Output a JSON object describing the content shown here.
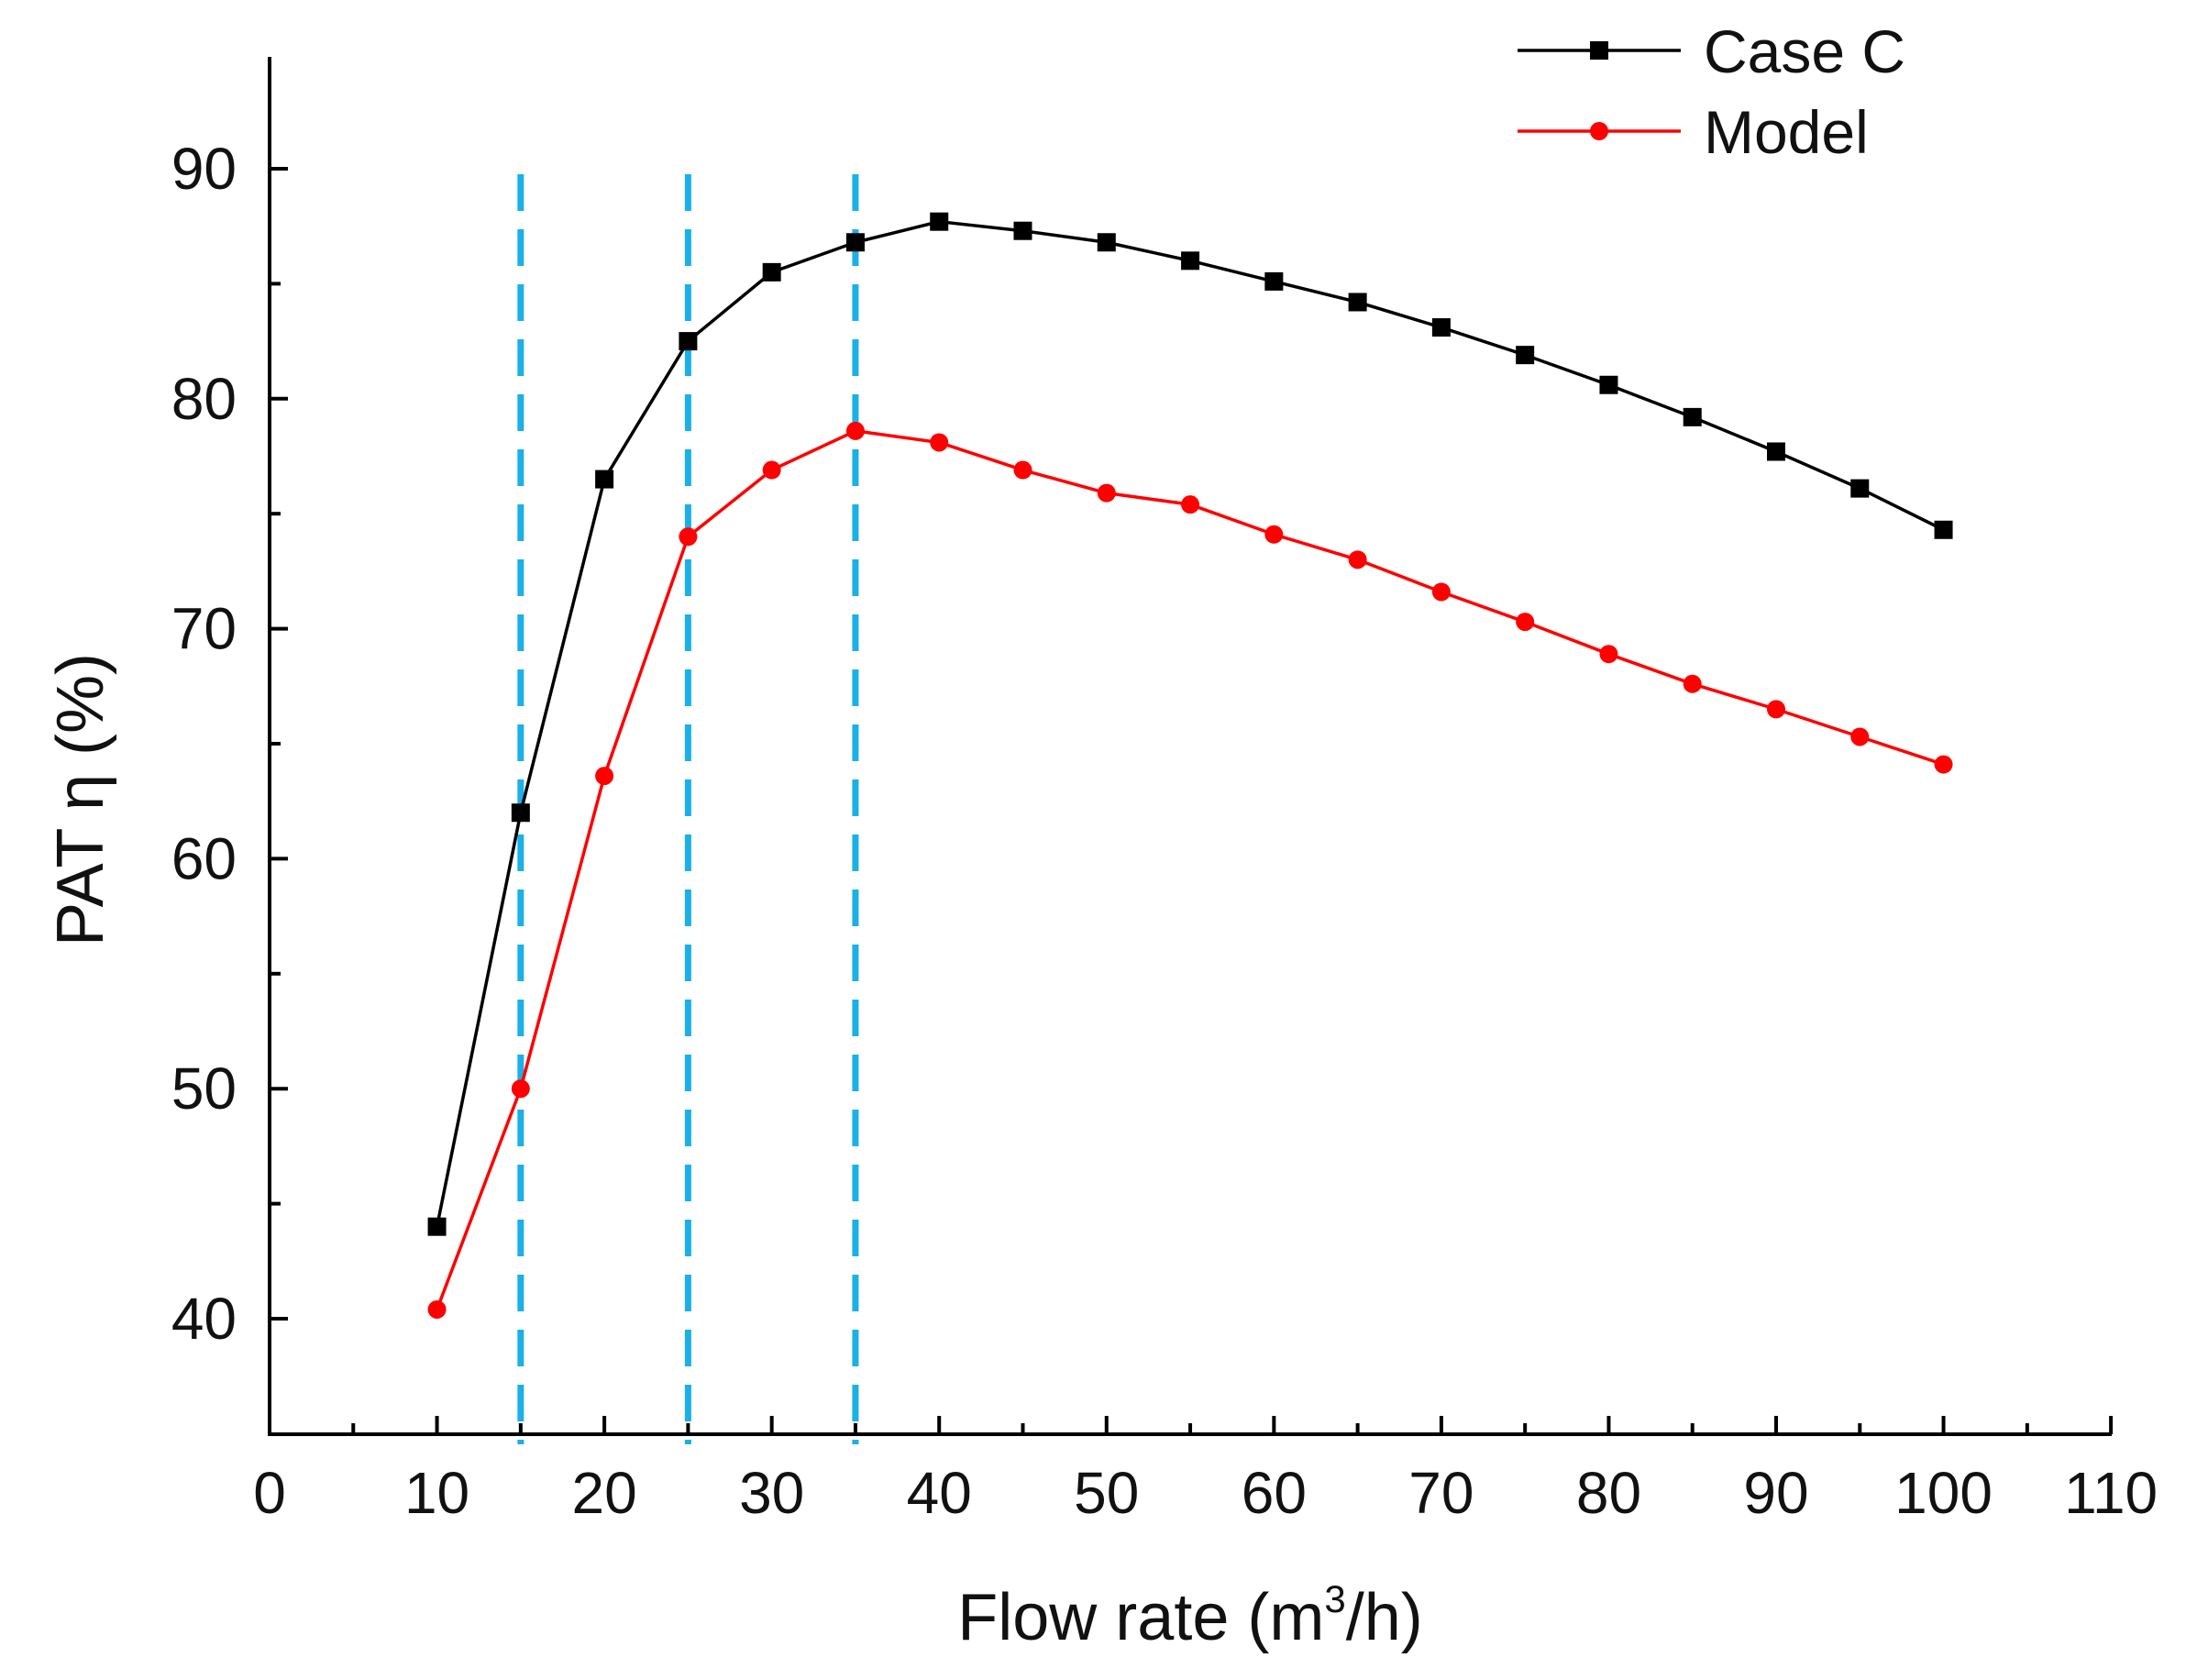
{
  "chart_data": {
    "type": "line",
    "title": "",
    "xlabel": {
      "main": "Flow rate (m",
      "sup": "3",
      "tail": "/h)"
    },
    "ylabel": "PAT η (%)",
    "xlim": [
      0,
      110
    ],
    "ylim": [
      35,
      95
    ],
    "x_major_ticks": [
      0,
      10,
      20,
      30,
      40,
      50,
      60,
      70,
      80,
      90,
      100,
      110
    ],
    "x_tick_labels": [
      "0",
      "10",
      "20",
      "30",
      "40",
      "50",
      "60",
      "70",
      "80",
      "90",
      "100",
      "110"
    ],
    "x_minor_step": 5,
    "y_major_ticks": [
      40,
      50,
      60,
      70,
      80,
      90
    ],
    "y_tick_labels": [
      "40",
      "50",
      "60",
      "70",
      "80",
      "90"
    ],
    "y_minor_step": 5,
    "grid": false,
    "legend_position": "top-right",
    "x": [
      10,
      15,
      20,
      25,
      30,
      35,
      40,
      45,
      50,
      55,
      60,
      65,
      70,
      75,
      80,
      85,
      90,
      95,
      100
    ],
    "series": [
      {
        "name": "Case C",
        "color": "#000000",
        "marker": "square",
        "values": [
          44.0,
          62.0,
          76.5,
          82.5,
          85.5,
          86.8,
          87.7,
          87.3,
          86.8,
          86.0,
          85.1,
          84.2,
          83.1,
          81.9,
          80.6,
          79.2,
          77.7,
          76.1,
          74.3
        ]
      },
      {
        "name": "Model",
        "color": "#ff0000",
        "marker": "circle",
        "values": [
          40.4,
          50.0,
          63.6,
          74.0,
          76.9,
          78.6,
          78.1,
          76.9,
          75.9,
          75.4,
          74.1,
          73.0,
          71.6,
          70.3,
          68.9,
          67.6,
          66.5,
          65.3,
          64.1
        ]
      }
    ],
    "reference_lines": [
      {
        "orientation": "vertical",
        "x": 15,
        "color": "#1ab0e8",
        "style": "dashed"
      },
      {
        "orientation": "vertical",
        "x": 25,
        "color": "#1ab0e8",
        "style": "dashed"
      },
      {
        "orientation": "vertical",
        "x": 35,
        "color": "#1ab0e8",
        "style": "dashed"
      }
    ]
  }
}
